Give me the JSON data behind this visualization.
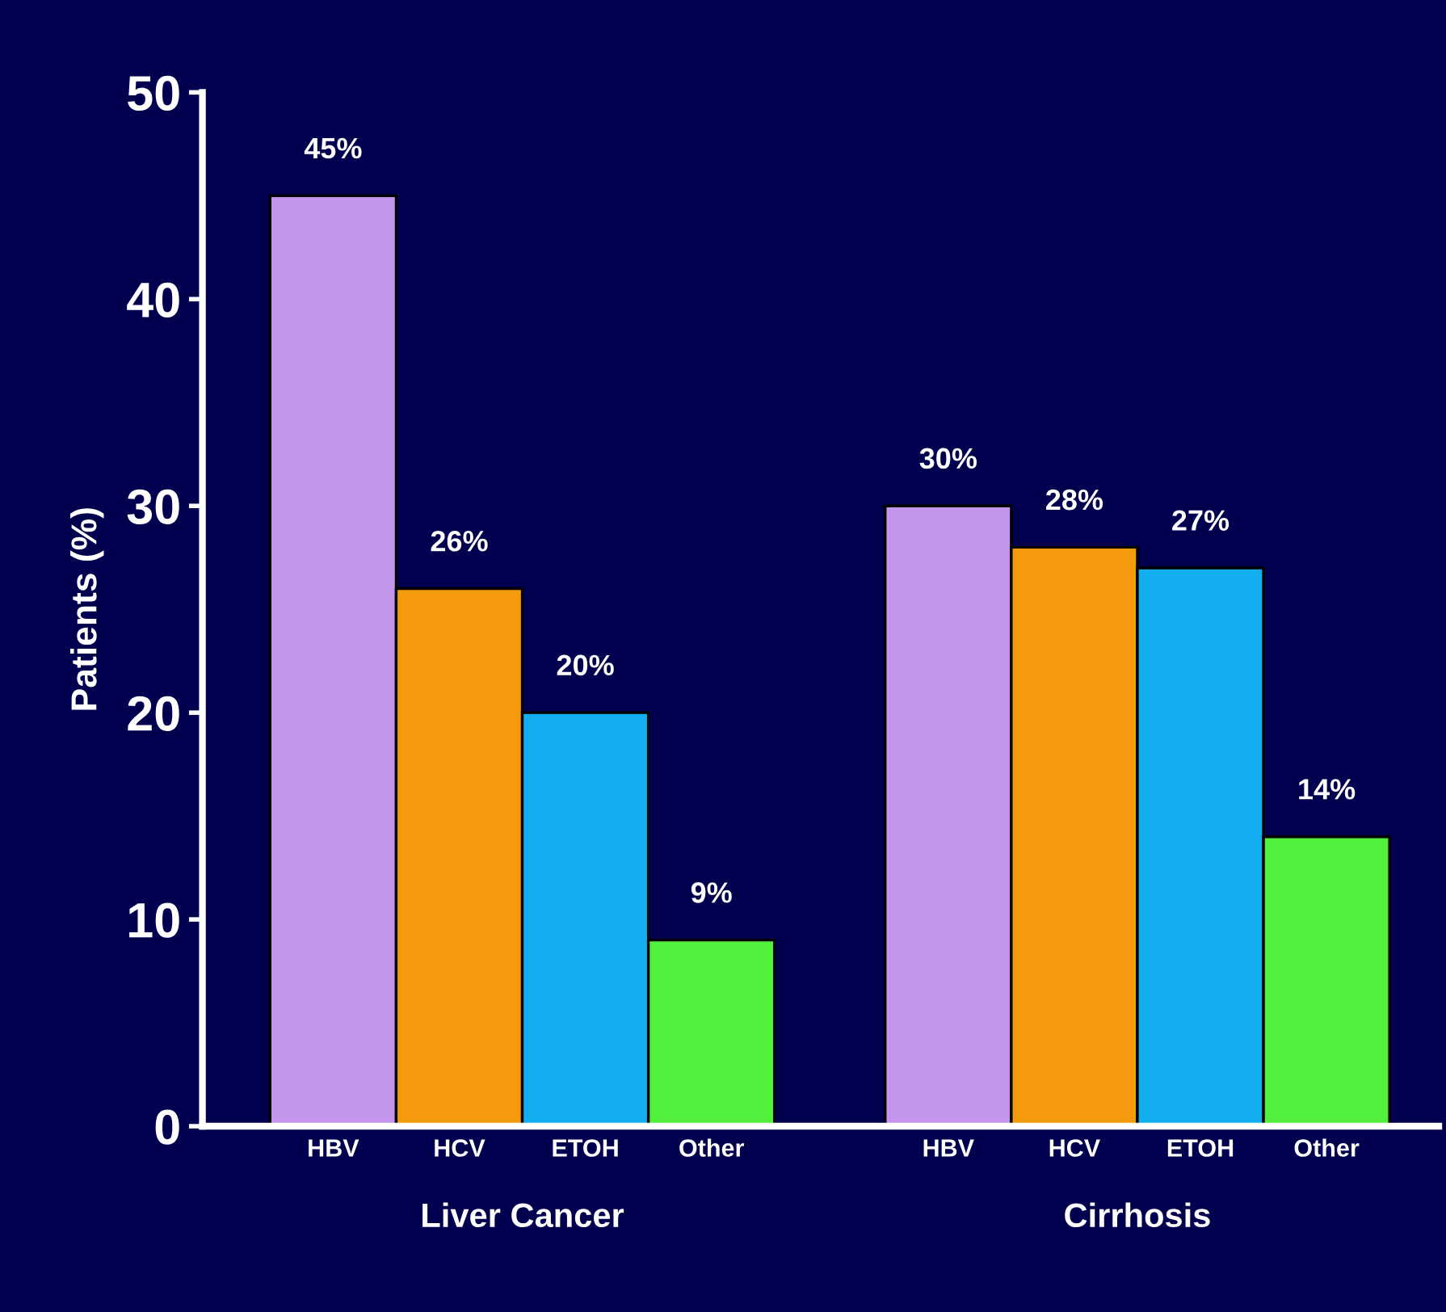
{
  "chart_data": {
    "type": "bar",
    "ylabel": "Patients (%)",
    "categories": [
      "Liver Cancer",
      "Cirrhosis"
    ],
    "series": [
      {
        "name": "HBV",
        "color": "#c495ec",
        "values": [
          45,
          30
        ],
        "value_labels": [
          "45%",
          "30%"
        ]
      },
      {
        "name": "HCV",
        "color": "#f59a0c",
        "values": [
          26,
          28
        ],
        "value_labels": [
          "26%",
          "28%"
        ]
      },
      {
        "name": "ETOH",
        "color": "#12aef0",
        "values": [
          20,
          27
        ],
        "value_labels": [
          "20%",
          "27%"
        ]
      },
      {
        "name": "Other",
        "color": "#52f03c",
        "values": [
          9,
          14
        ],
        "value_labels": [
          "9%",
          "14%"
        ]
      }
    ],
    "ylim": [
      0,
      50
    ],
    "yticks": [
      0,
      10,
      20,
      30,
      40,
      50
    ],
    "grid": false,
    "legend": false
  }
}
